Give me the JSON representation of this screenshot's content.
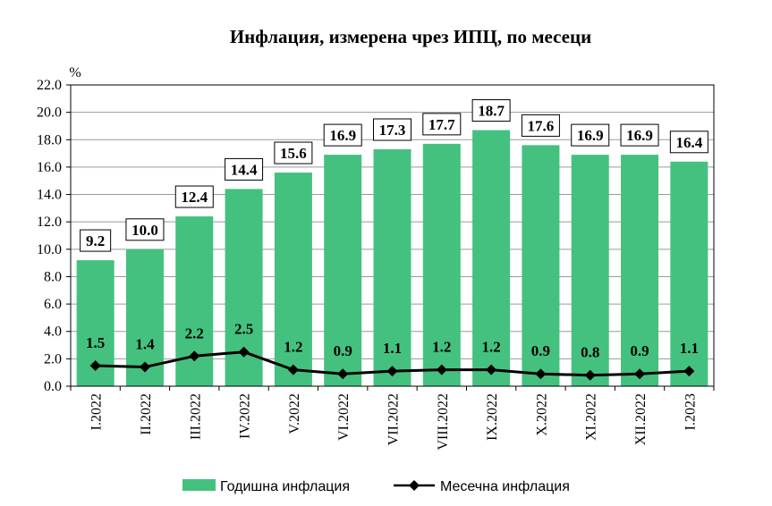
{
  "chart_data": {
    "type": "bar",
    "title": "Инфлация, измерена чрез ИПЦ, по месеци",
    "y_unit": "%",
    "ylim": [
      0,
      22
    ],
    "y_ticks": [
      "0.0",
      "2.0",
      "4.0",
      "6.0",
      "8.0",
      "10.0",
      "12.0",
      "14.0",
      "16.0",
      "18.0",
      "20.0",
      "22.0"
    ],
    "categories": [
      "I.2022",
      "II.2022",
      "III.2022",
      "IV.2022",
      "V.2022",
      "VI.2022",
      "VII.2022",
      "VIII.2022",
      "IX.2022",
      "X.2022",
      "XI.2022",
      "XII.2022",
      "I.2023"
    ],
    "series": [
      {
        "name": "Годишна инфлация",
        "kind": "bar",
        "color": "#44c17f",
        "values": [
          9.2,
          10.0,
          12.4,
          14.4,
          15.6,
          16.9,
          17.3,
          17.7,
          18.7,
          17.6,
          16.9,
          16.9,
          16.4
        ],
        "labels": [
          "9.2",
          "10.0",
          "12.4",
          "14.4",
          "15.6",
          "16.9",
          "17.3",
          "17.7",
          "18.7",
          "17.6",
          "16.9",
          "16.9",
          "16.4"
        ]
      },
      {
        "name": "Месечна инфлация",
        "kind": "line",
        "color": "#000000",
        "values": [
          1.5,
          1.4,
          2.2,
          2.5,
          1.2,
          0.9,
          1.1,
          1.2,
          1.2,
          0.9,
          0.8,
          0.9,
          1.1
        ],
        "labels": [
          "1.5",
          "1.4",
          "2.2",
          "2.5",
          "1.2",
          "0.9",
          "1.1",
          "1.2",
          "1.2",
          "0.9",
          "0.8",
          "0.9",
          "1.1"
        ]
      }
    ],
    "grid": true,
    "legend_position": "bottom"
  }
}
